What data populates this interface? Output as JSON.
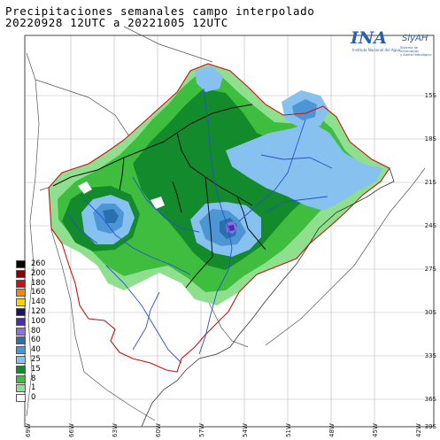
{
  "title": {
    "line1": "Precipitaciones semanales campo interpolado",
    "line2": "20220928 12UTC a 20221005 12UTC"
  },
  "logo": {
    "name": "INA",
    "side": "SiyAH",
    "subtitle": "Instituto Nacional del Agua",
    "side_subtitle_1": "Sistema de Información",
    "side_subtitle_2": "y Alerta Hidrológico",
    "color": "#2b5fa8"
  },
  "latitude_labels": [
    "15S",
    "18S",
    "21S",
    "24S",
    "27S",
    "30S",
    "33S",
    "36S",
    "39S"
  ],
  "longitude_labels": [
    "69W",
    "66W",
    "63W",
    "60W",
    "57W",
    "54W",
    "51W",
    "48W",
    "45W",
    "42W"
  ],
  "legend": [
    {
      "label": "260",
      "color": "#000000"
    },
    {
      "label": "200",
      "color": "#8b0000"
    },
    {
      "label": "180",
      "color": "#d01010"
    },
    {
      "label": "160",
      "color": "#f08a00"
    },
    {
      "label": "140",
      "color": "#ffd200"
    },
    {
      "label": "120",
      "color": "#23106e"
    },
    {
      "label": "100",
      "color": "#4b2da8"
    },
    {
      "label": "80",
      "color": "#8a70e0"
    },
    {
      "label": "60",
      "color": "#2a6fb0"
    },
    {
      "label": "40",
      "color": "#4c96d6"
    },
    {
      "label": "25",
      "color": "#86c1f0"
    },
    {
      "label": "15",
      "color": "#138a2c"
    },
    {
      "label": "8",
      "color": "#3fbd3f"
    },
    {
      "label": "1",
      "color": "#8ee08e"
    },
    {
      "label": "0",
      "color": "#ffffff"
    }
  ]
}
